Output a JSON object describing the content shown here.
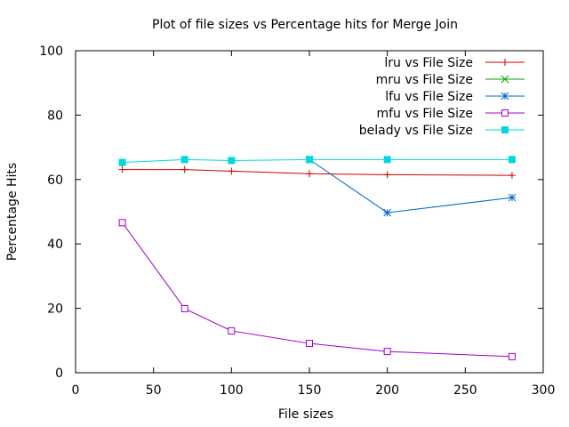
{
  "chart_data": {
    "type": "line",
    "title": "Plot of file sizes vs Percentage hits for Merge Join",
    "xlabel": "File sizes",
    "ylabel": "Percentage Hits",
    "xlim": [
      0,
      300
    ],
    "ylim": [
      0,
      100
    ],
    "xticks": [
      0,
      50,
      100,
      150,
      200,
      250,
      300
    ],
    "yticks": [
      0,
      20,
      40,
      60,
      80,
      100
    ],
    "grid": false,
    "legend_position": "top-right",
    "series": [
      {
        "name": "lru vs File Size",
        "color": "#cc0000",
        "marker": "plus",
        "points": [
          [
            30,
            63.1
          ],
          [
            70,
            63.1
          ],
          [
            100,
            62.6
          ],
          [
            150,
            61.8
          ],
          [
            200,
            61.5
          ],
          [
            280,
            61.3
          ]
        ]
      },
      {
        "name": "mru vs File Size",
        "color": "#00a000",
        "marker": "cross",
        "points": []
      },
      {
        "name": "lfu vs File Size",
        "color": "#0066cc",
        "marker": "asterisk",
        "points": [
          [
            150,
            66.2
          ],
          [
            200,
            49.7
          ],
          [
            280,
            54.4
          ]
        ]
      },
      {
        "name": "mfu vs File Size",
        "color": "#a000cc",
        "marker": "open-square",
        "points": [
          [
            30,
            46.6
          ],
          [
            70,
            19.9
          ],
          [
            100,
            13.0
          ],
          [
            150,
            9.1
          ],
          [
            200,
            6.6
          ],
          [
            280,
            5.0
          ]
        ]
      },
      {
        "name": "belady vs File Size",
        "color": "#00d8e0",
        "marker": "filled-square",
        "points": [
          [
            30,
            65.3
          ],
          [
            70,
            66.2
          ],
          [
            100,
            65.9
          ],
          [
            150,
            66.2
          ],
          [
            200,
            66.2
          ],
          [
            280,
            66.2
          ]
        ]
      }
    ]
  }
}
